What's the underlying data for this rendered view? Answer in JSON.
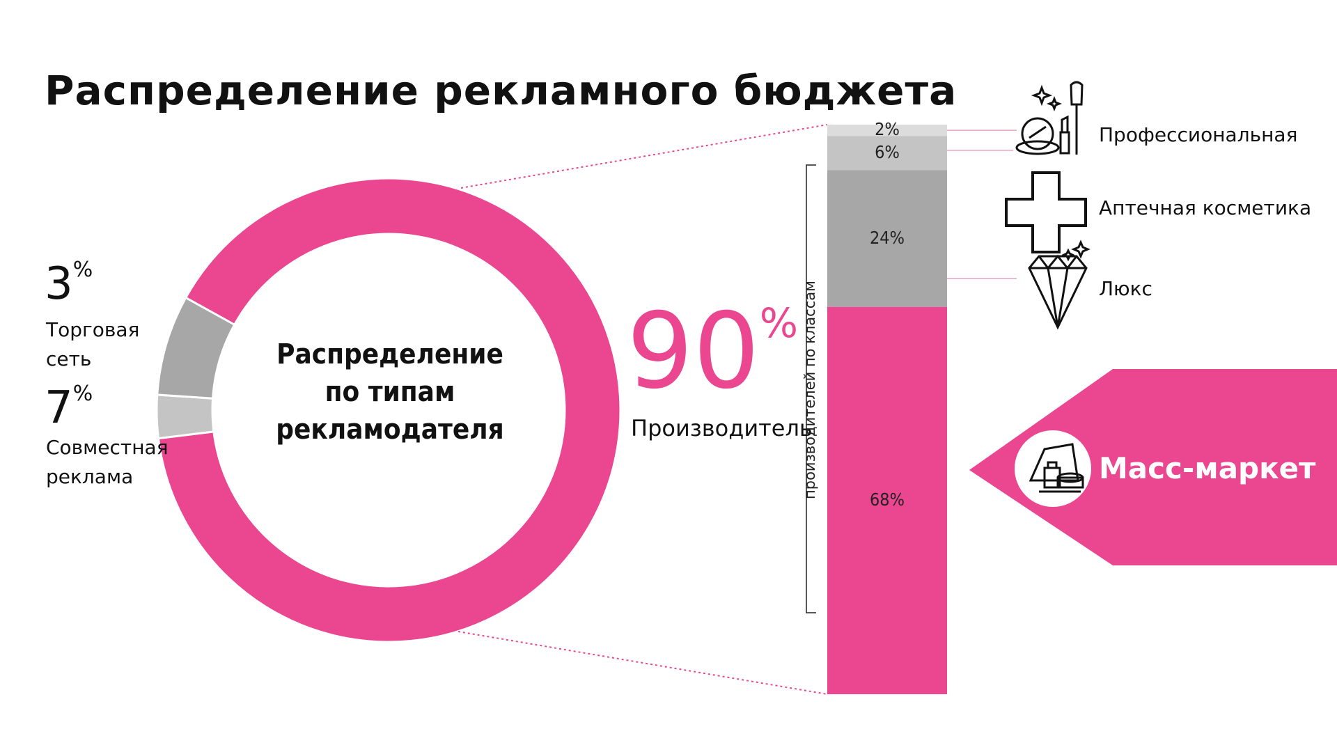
{
  "title": "Распределение рекламного бюджета",
  "colors": {
    "accent": "#ea4790",
    "gray_mid": "#a7a7a7",
    "gray_light": "#c4c4c4",
    "gray_lighter": "#dcdcdc"
  },
  "chart_data": [
    {
      "type": "pie",
      "variant": "donut",
      "center_label": [
        "Распределение",
        "по типам рекламодателя"
      ],
      "slices": [
        {
          "label": "Производитель",
          "value": 90,
          "display": "90",
          "unit": "%",
          "color": "#ea4790"
        },
        {
          "label": "Торговая сеть",
          "lines": [
            "Торговая",
            "сеть"
          ],
          "value": 3,
          "display": "3",
          "unit": "%",
          "color": "#c4c4c4"
        },
        {
          "label": "Совместная реклама",
          "lines": [
            "Совместная",
            "реклама"
          ],
          "value": 7,
          "display": "7",
          "unit": "%",
          "color": "#a7a7a7"
        }
      ]
    },
    {
      "type": "bar",
      "variant": "stacked-100",
      "axis_label": "производителей по классам",
      "segments": [
        {
          "label": "Профессиональная",
          "value": 2,
          "display": "2%",
          "color": "#dcdcdc",
          "icon": "cosmetics-brush-icon"
        },
        {
          "label": "Аптечная косметика",
          "value": 6,
          "display": "6%",
          "color": "#c4c4c4",
          "icon": "medical-cross-icon"
        },
        {
          "label": "Люкс",
          "value": 24,
          "display": "24%",
          "color": "#a7a7a7",
          "icon": "diamond-icon"
        },
        {
          "label": "Масс-маркет",
          "value": 68,
          "display": "68%",
          "color": "#ea4790",
          "icon": "mass-market-cosmetics-icon"
        }
      ]
    }
  ]
}
